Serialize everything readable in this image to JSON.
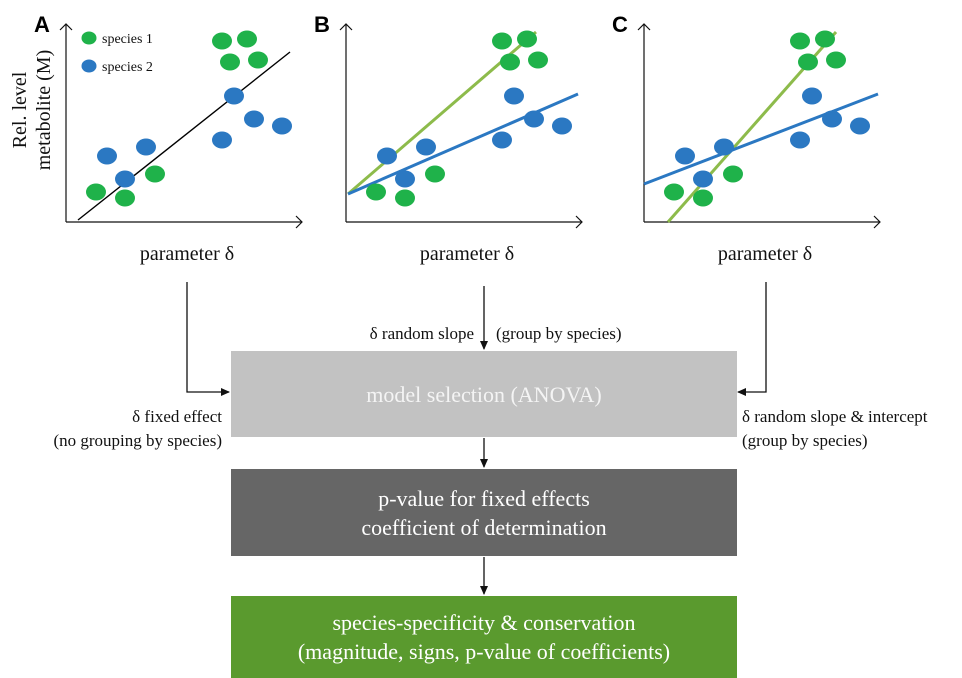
{
  "panels": [
    {
      "letter": "A",
      "fit": "fixed"
    },
    {
      "letter": "B",
      "fit": "random-slope"
    },
    {
      "letter": "C",
      "fit": "random-slope-intercept"
    }
  ],
  "y_axis_label": [
    "Rel. level",
    "metabolite (M)"
  ],
  "x_axis_label": "parameter δ",
  "legend": [
    {
      "label": "species 1",
      "color": "#1fb24a"
    },
    {
      "label": "species 2",
      "color": "#2b78c2"
    }
  ],
  "colors": {
    "species1": "#1fb24a",
    "species2": "#2b78c2",
    "fit_species1": "#8dbb4b",
    "fit_species2": "#2b78c2",
    "fit_pooled": "#000000",
    "box_model": "#c2c2c2",
    "box_pvalue": "#666666",
    "box_species": "#5a9a2e"
  },
  "edge_labels": {
    "left_line1": "δ fixed effect",
    "left_line2": "(no grouping by species)",
    "top_a": "δ random slope",
    "top_b": "(group by species)",
    "right_line1": "δ random slope & intercept",
    "right_line2": "(group by species)"
  },
  "boxes": {
    "model_selection": "model selection (ANOVA)",
    "pvalue_line1": "p-value for fixed effects",
    "pvalue_line2": "coefficient of determination",
    "species_line1": "species-specificity & conservation",
    "species_line2": "(magnitude, signs, p-value of coefficients)"
  }
}
